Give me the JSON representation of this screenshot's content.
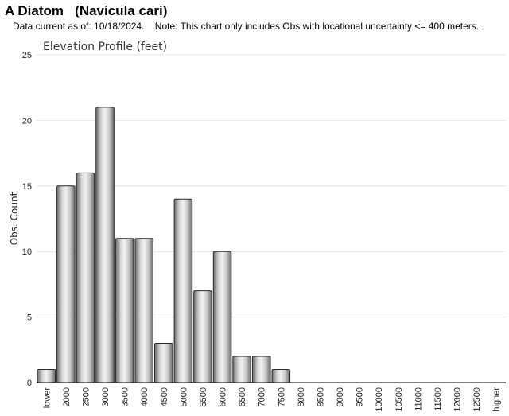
{
  "header": {
    "title": "A Diatom   (Navicula cari)",
    "note": "Data current as of: 10/18/2024.    Note: This chart only includes Obs with locational uncertainty <= 400 meters."
  },
  "chart_data": {
    "type": "bar",
    "title": "Elevation Profile (feet)",
    "xlabel": "",
    "ylabel": "Obs. Count",
    "ylim": [
      0,
      25
    ],
    "yticks": [
      0,
      5,
      10,
      15,
      20,
      25
    ],
    "grid": true,
    "categories": [
      "lower",
      "2000",
      "2500",
      "3000",
      "3500",
      "4000",
      "4500",
      "5000",
      "5500",
      "6000",
      "6500",
      "7000",
      "7500",
      "8000",
      "8500",
      "9000",
      "9500",
      "10000",
      "10500",
      "11000",
      "11500",
      "12000",
      "12500",
      "higher"
    ],
    "values": [
      1,
      15,
      16,
      21,
      11,
      11,
      3,
      14,
      7,
      10,
      2,
      2,
      1,
      0,
      0,
      0,
      0,
      0,
      0,
      0,
      0,
      0,
      0,
      0
    ],
    "bar_color": "#b0b0b0"
  }
}
